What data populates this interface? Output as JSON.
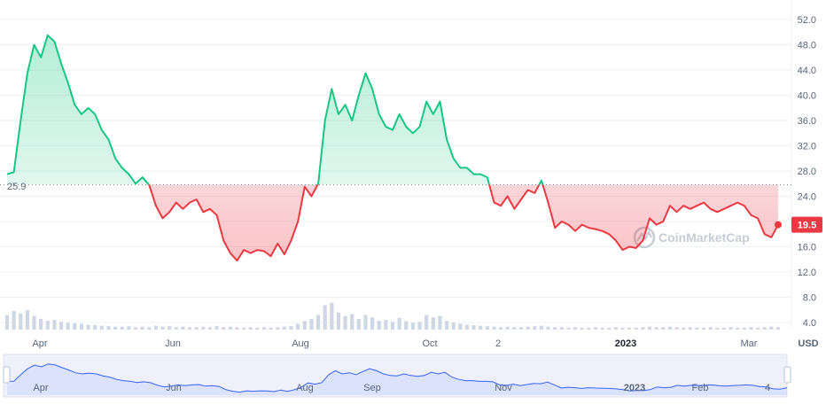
{
  "chart_data": {
    "type": "area",
    "watermark": "CoinMarketCap",
    "unit": "USD",
    "baseline": 25.9,
    "baseline_label": "25.9",
    "current_price": 19.5,
    "current_label": "19.5",
    "ylim": [
      0,
      56
    ],
    "y_ticks": [
      "4.0",
      "8.0",
      "12.0",
      "16.0",
      "20.0",
      "24.0",
      "28.0",
      "32.0",
      "36.0",
      "40.0",
      "44.0",
      "48.0",
      "52.0"
    ],
    "x_labels": [
      "Apr",
      "Jun",
      "Aug",
      "Oct",
      "2",
      "2023",
      "Mar"
    ],
    "navigator_labels": [
      "Apr",
      "Jun",
      "Aug",
      "Sep",
      "Nov",
      "2023",
      "Feb",
      "4"
    ],
    "colors": {
      "up": "#16c784",
      "down": "#ea3943",
      "navigator": "#3861fb",
      "volume": "#cfd6e4"
    },
    "series": [
      {
        "values": [
          27.5,
          27.8,
          36.0,
          43.5,
          48.0,
          46.0,
          49.5,
          48.5,
          45.0,
          42.0,
          38.5,
          37.0,
          38.0,
          37.0,
          34.5,
          33.0,
          30.0,
          28.5,
          27.5,
          26.0,
          27.0,
          25.8,
          22.5,
          20.5,
          21.5,
          23.0,
          22.0,
          23.0,
          23.5,
          21.5,
          22.0,
          21.0,
          17.0,
          15.0,
          13.8,
          15.5,
          15.0,
          15.5,
          15.3,
          14.5,
          16.5,
          14.8,
          17.0,
          20.0,
          25.5,
          24.0,
          26.0,
          36.0,
          41.0,
          37.0,
          38.5,
          36.0,
          40.0,
          43.5,
          41.0,
          37.0,
          35.0,
          34.5,
          37.0,
          35.0,
          34.0,
          35.0,
          39.0,
          37.0,
          39.0,
          33.0,
          30.0,
          28.5,
          28.5,
          27.5,
          27.5,
          27.0,
          23.0,
          22.5,
          24.0,
          22.0,
          23.5,
          25.0,
          24.5,
          26.5,
          23.0,
          19.0,
          20.0,
          19.5,
          18.5,
          19.5,
          19.0,
          18.8,
          18.5,
          18.0,
          17.0,
          15.5,
          16.0,
          15.8,
          17.0,
          20.5,
          19.5,
          20.0,
          22.5,
          21.5,
          22.5,
          22.0,
          22.5,
          23.0,
          22.0,
          21.5,
          22.0,
          22.5,
          23.0,
          22.5,
          21.0,
          20.5,
          18.0,
          17.5,
          19.5
        ]
      }
    ],
    "volume": [
      0.3,
      0.38,
      0.33,
      0.4,
      0.28,
      0.22,
      0.18,
      0.2,
      0.16,
      0.14,
      0.13,
      0.12,
      0.1,
      0.09,
      0.08,
      0.07,
      0.06,
      0.06,
      0.07,
      0.05,
      0.06,
      0.05,
      0.08,
      0.06,
      0.07,
      0.05,
      0.06,
      0.05,
      0.05,
      0.06,
      0.05,
      0.07,
      0.05,
      0.06,
      0.05,
      0.04,
      0.05,
      0.04,
      0.05,
      0.04,
      0.05,
      0.06,
      0.07,
      0.12,
      0.18,
      0.22,
      0.3,
      0.5,
      0.55,
      0.35,
      0.28,
      0.32,
      0.22,
      0.3,
      0.25,
      0.18,
      0.2,
      0.16,
      0.24,
      0.17,
      0.14,
      0.16,
      0.3,
      0.25,
      0.28,
      0.18,
      0.14,
      0.12,
      0.1,
      0.09,
      0.08,
      0.07,
      0.06,
      0.05,
      0.06,
      0.05,
      0.05,
      0.06,
      0.07,
      0.08,
      0.06,
      0.05,
      0.05,
      0.04,
      0.05,
      0.04,
      0.04,
      0.05,
      0.04,
      0.04,
      0.05,
      0.04,
      0.04,
      0.04,
      0.05,
      0.06,
      0.05,
      0.05,
      0.06,
      0.05,
      0.04,
      0.05,
      0.04,
      0.04,
      0.05,
      0.04,
      0.04,
      0.05,
      0.04,
      0.04,
      0.05,
      0.04,
      0.05,
      0.06,
      0.05
    ]
  }
}
